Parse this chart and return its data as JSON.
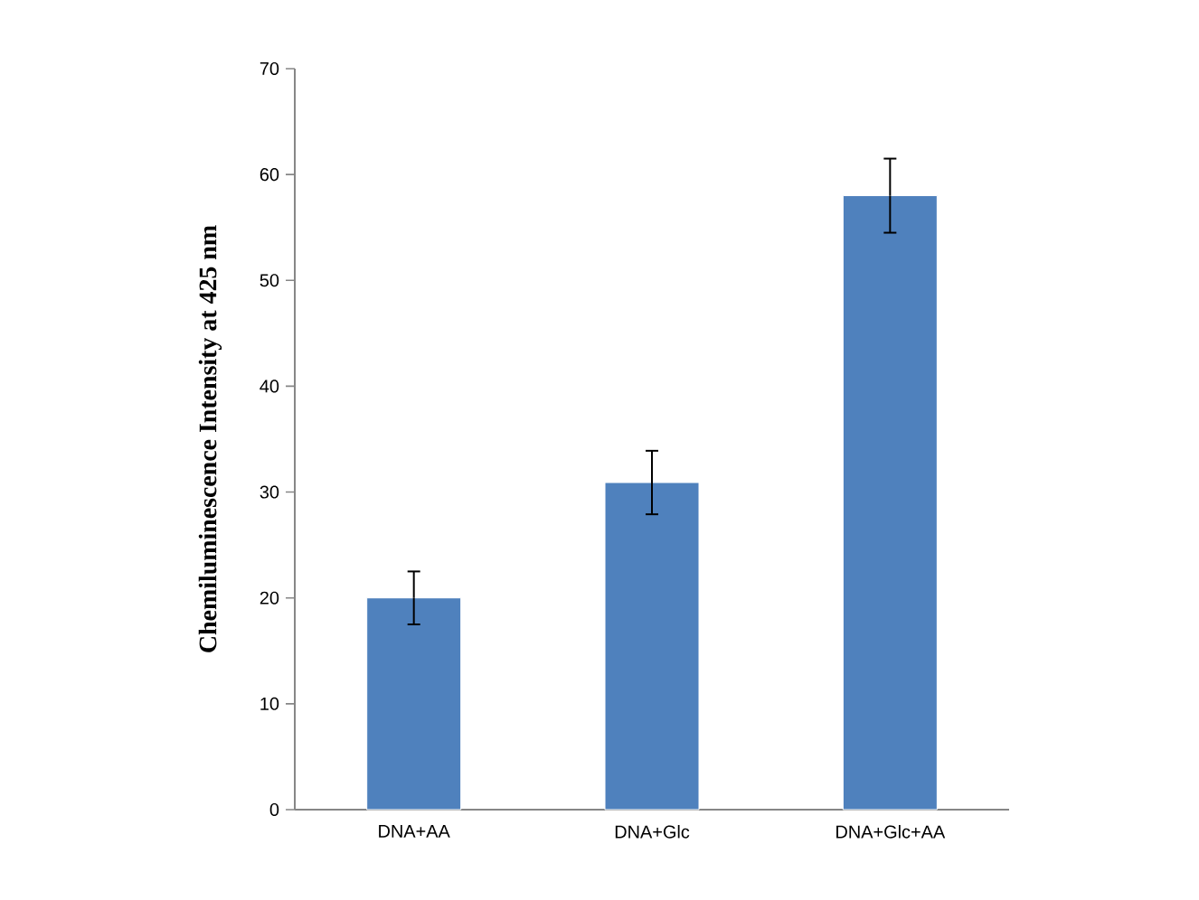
{
  "chart_data": {
    "type": "bar",
    "ylabel": "Chemiluminescence Intensity at 425 nm",
    "categories": [
      "DNA+AA",
      "DNA+Glc",
      "DNA+Glc+AA"
    ],
    "values": [
      20,
      30.9,
      58
    ],
    "errors": [
      2.5,
      3,
      3.5
    ],
    "color": "#4f81bd",
    "ylim": [
      0,
      70
    ],
    "yticks": [
      0,
      10,
      20,
      30,
      40,
      50,
      60,
      70
    ],
    "grid": false
  }
}
